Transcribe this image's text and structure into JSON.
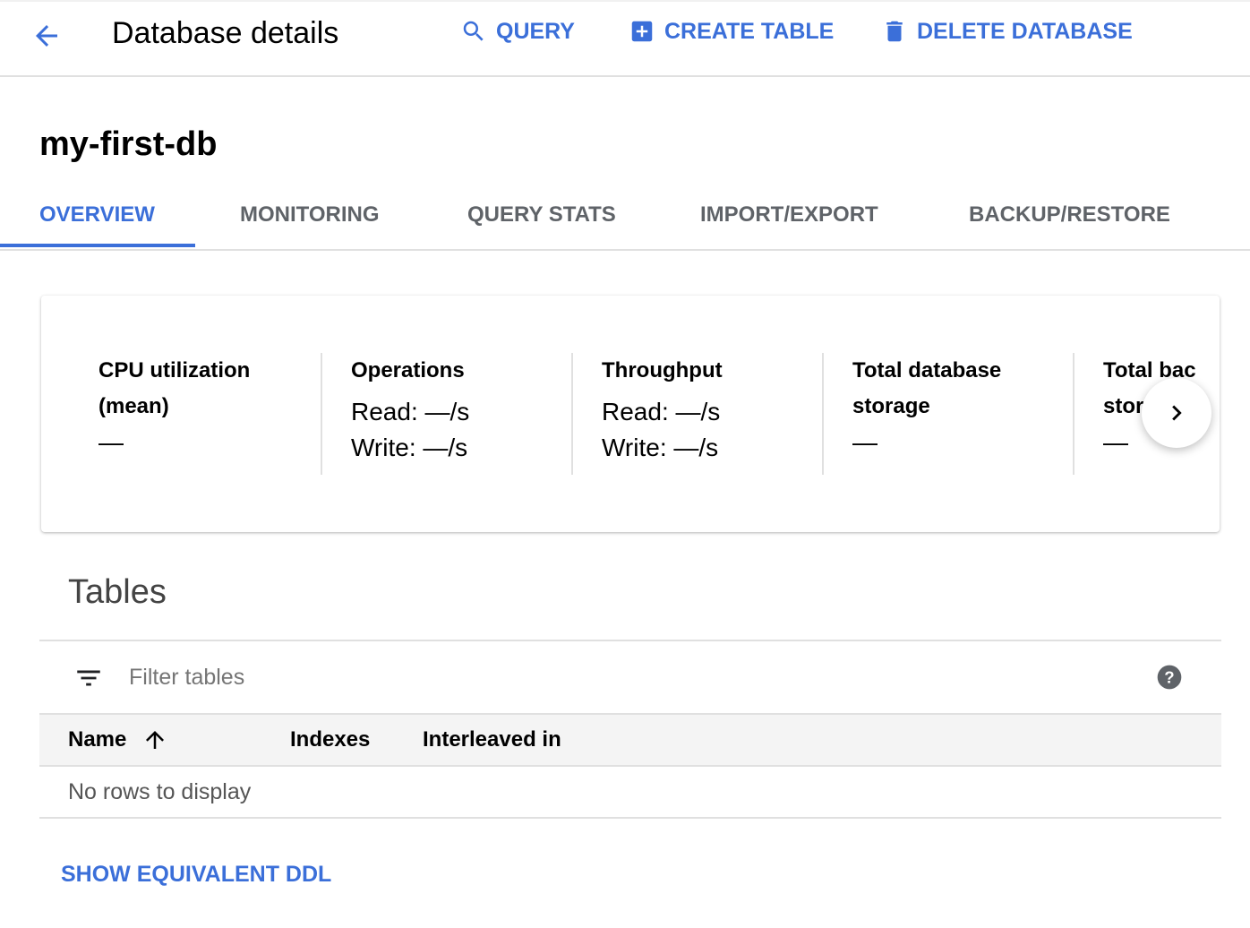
{
  "header": {
    "title": "Database details",
    "actions": [
      {
        "label": "QUERY",
        "icon": "search-icon"
      },
      {
        "label": "CREATE TABLE",
        "icon": "add-box-icon"
      },
      {
        "label": "DELETE DATABASE",
        "icon": "trash-icon"
      }
    ]
  },
  "database": {
    "name": "my-first-db"
  },
  "tabs": [
    {
      "label": "OVERVIEW",
      "active": true
    },
    {
      "label": "MONITORING"
    },
    {
      "label": "QUERY STATS"
    },
    {
      "label": "IMPORT/EXPORT"
    },
    {
      "label": "BACKUP/RESTORE"
    }
  ],
  "metrics": [
    {
      "label_line1": "CPU utilization",
      "label_line2": "(mean)",
      "value": "—"
    },
    {
      "label_line1": "Operations",
      "read": "Read: —/s",
      "write": "Write: —/s"
    },
    {
      "label_line1": "Throughput",
      "read": "Read: —/s",
      "write": "Write: —/s"
    },
    {
      "label_line1": "Total database",
      "label_line2": "storage",
      "value": "—"
    },
    {
      "label_line1": "Total bac",
      "label_line2": "stor",
      "value": "—"
    }
  ],
  "tables": {
    "title": "Tables",
    "filter_placeholder": "Filter tables",
    "columns": [
      "Name",
      "Indexes",
      "Interleaved in"
    ],
    "empty": "No rows to display"
  },
  "ddl_link": "SHOW EQUIVALENT DDL",
  "colors": {
    "accent": "#3b6fd9"
  }
}
